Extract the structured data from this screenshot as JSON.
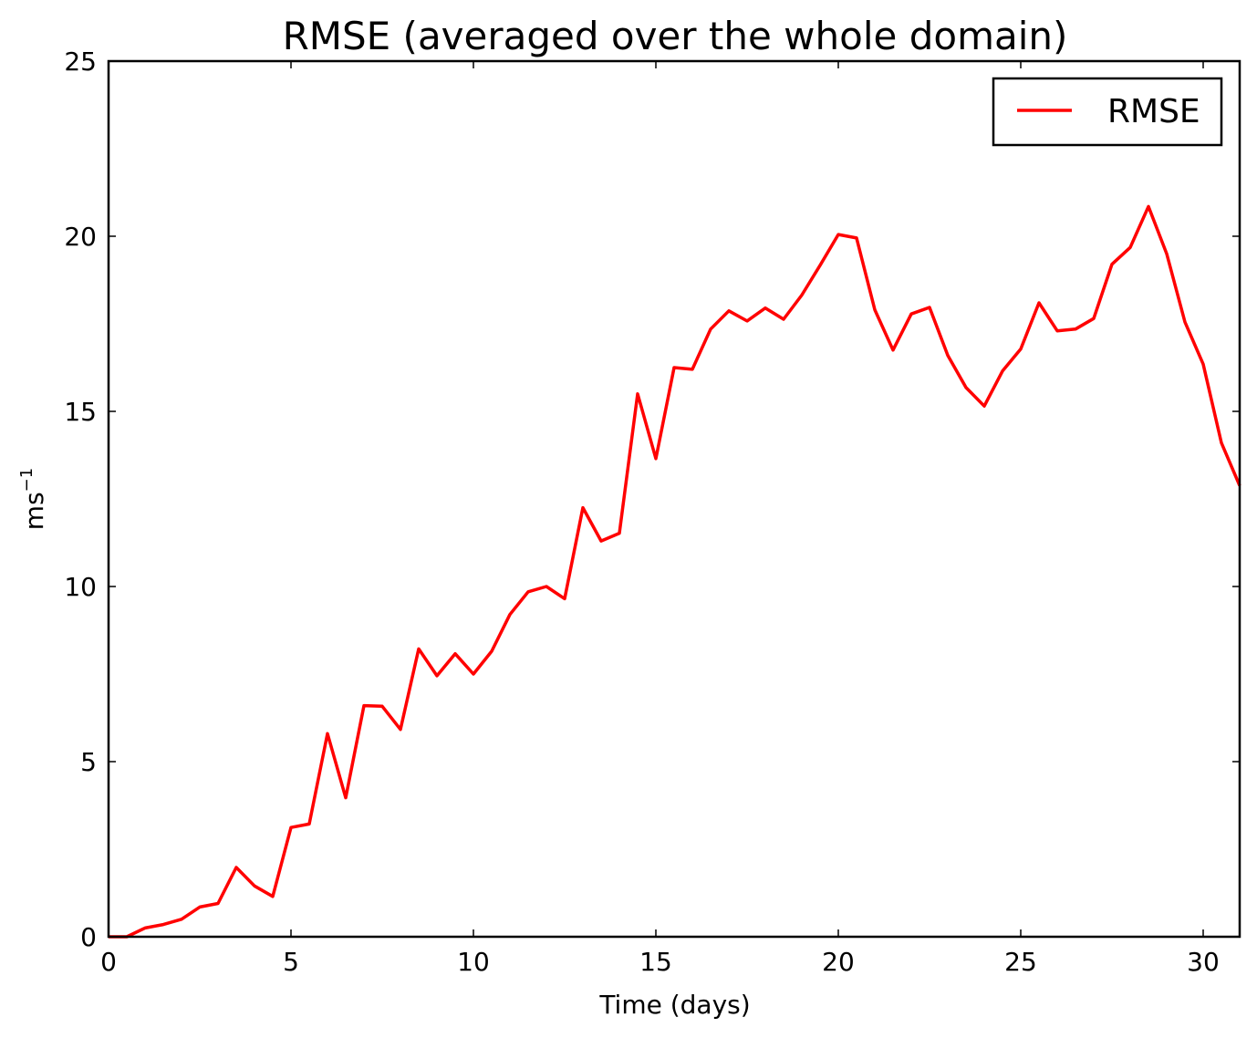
{
  "chart_data": {
    "type": "line",
    "title": "RMSE (averaged over the whole domain)",
    "xlabel": "Time (days)",
    "ylabel": "ms",
    "ylabel_sup": "−1",
    "xlim": [
      0,
      31
    ],
    "ylim": [
      0,
      25
    ],
    "xticks": [
      0,
      5,
      10,
      15,
      20,
      25,
      30
    ],
    "yticks": [
      0,
      5,
      10,
      15,
      20,
      25
    ],
    "grid": false,
    "legend_position": "top-right",
    "series": [
      {
        "name": "RMSE",
        "color": "#ff0000",
        "x": [
          0,
          0.5,
          1,
          1.5,
          2,
          2.5,
          3,
          3.5,
          4,
          4.5,
          5,
          5.5,
          6,
          6.5,
          7,
          7.5,
          8,
          8.5,
          9,
          9.5,
          10,
          10.5,
          11,
          11.5,
          12,
          12.5,
          13,
          13.5,
          14,
          14.5,
          15,
          15.5,
          16,
          16.5,
          17,
          17.5,
          18,
          18.5,
          19,
          19.5,
          20,
          20.5,
          21,
          21.5,
          22,
          22.5,
          23,
          23.5,
          24,
          24.5,
          25,
          25.5,
          26,
          26.5,
          27,
          27.5,
          28,
          28.5,
          29,
          29.5,
          30,
          30.5,
          31
        ],
        "y": [
          0,
          0,
          0.25,
          0.35,
          0.5,
          0.85,
          0.95,
          1.98,
          1.45,
          1.15,
          3.12,
          3.22,
          5.8,
          3.97,
          6.6,
          6.58,
          5.92,
          8.22,
          7.45,
          8.08,
          7.5,
          8.15,
          9.2,
          9.85,
          10.0,
          9.65,
          12.25,
          11.3,
          11.52,
          15.5,
          13.65,
          16.25,
          16.2,
          17.35,
          17.87,
          17.58,
          17.95,
          17.63,
          18.32,
          19.17,
          20.05,
          19.95,
          17.9,
          16.75,
          17.78,
          17.97,
          16.6,
          15.68,
          15.15,
          16.15,
          16.78,
          18.1,
          17.3,
          17.35,
          17.65,
          19.2,
          19.68,
          20.85,
          19.5,
          17.55,
          16.35,
          14.1,
          12.88
        ]
      }
    ]
  }
}
